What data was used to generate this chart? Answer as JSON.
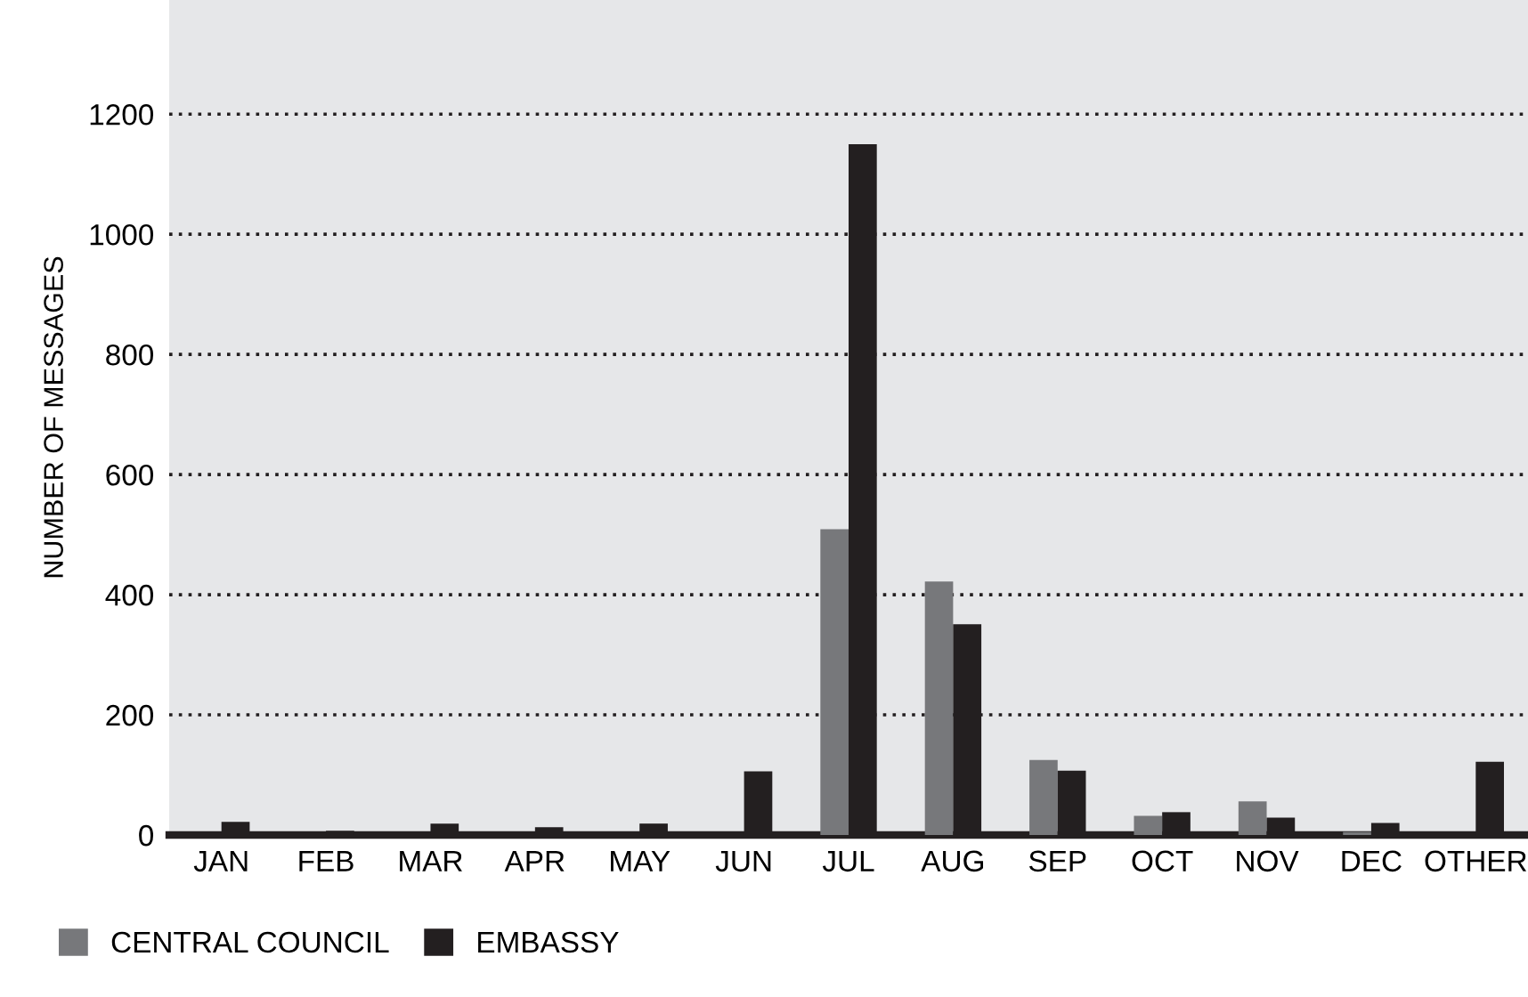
{
  "chart_data": {
    "type": "bar",
    "ylabel": "NUMBER OF MESSAGES",
    "categories": [
      "JAN",
      "FEB",
      "MAR",
      "APR",
      "MAY",
      "JUN",
      "JUL",
      "AUG",
      "SEP",
      "OCT",
      "NOV",
      "DEC",
      "OTHER"
    ],
    "series": [
      {
        "name": "CENTRAL COUNCIL",
        "color": "#77787b",
        "values": [
          0,
          0,
          0,
          0,
          0,
          0,
          509,
          422,
          125,
          32,
          56,
          5,
          0
        ]
      },
      {
        "name": "EMBASSY",
        "color": "#231f20",
        "values": [
          22,
          7,
          19,
          13,
          19,
          106,
          1150,
          351,
          107,
          38,
          29,
          20,
          122
        ]
      }
    ],
    "ylim": [
      0,
      1390
    ],
    "yticks": [
      0,
      200,
      400,
      600,
      800,
      1000,
      1200
    ],
    "grid": "y",
    "legend": "bottom left"
  }
}
